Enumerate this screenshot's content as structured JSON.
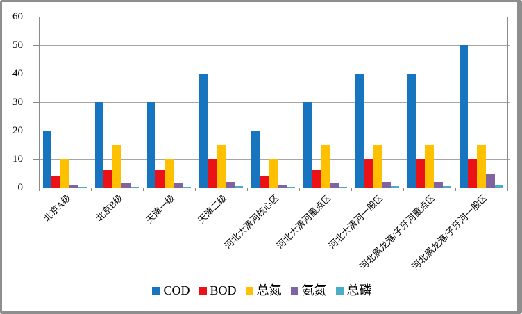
{
  "chart_data": {
    "type": "bar",
    "title": "",
    "categories": [
      "北京A级",
      "北京B级",
      "天津一级",
      "天津二级",
      "河北大清河核心区",
      "河北大清河重点区",
      "河北大清河一般区",
      "河北黑龙港/子牙河重点区",
      "河北黑龙港/子牙河一般区"
    ],
    "series": [
      {
        "name": "COD",
        "color": "#1775C0",
        "values": [
          20,
          30,
          30,
          40,
          20,
          30,
          40,
          40,
          50
        ]
      },
      {
        "name": "BOD",
        "color": "#EA1216",
        "values": [
          4,
          6,
          6,
          10,
          4,
          6,
          10,
          10,
          10
        ]
      },
      {
        "name": "总氮",
        "color": "#FFC000",
        "values": [
          10,
          15,
          10,
          15,
          10,
          15,
          15,
          15,
          15
        ]
      },
      {
        "name": "氨氮",
        "color": "#8064A2",
        "values": [
          1,
          1.5,
          1.5,
          2,
          1,
          1.5,
          2,
          2,
          5
        ]
      },
      {
        "name": "总磷",
        "color": "#4BACC6",
        "values": [
          0.2,
          0.3,
          0.3,
          0.5,
          0.3,
          0.3,
          0.5,
          0.5,
          1
        ]
      }
    ],
    "y_axis": {
      "min": 0,
      "max": 60,
      "tick_step": 10,
      "ticks": [
        0,
        10,
        20,
        30,
        40,
        50,
        60
      ]
    },
    "xlabel": "",
    "ylabel": "",
    "grid": true,
    "legend_position": "bottom"
  },
  "styles": {
    "grid_color": "#A6A6A6",
    "axis_color": "#8A8A8A",
    "frame_color": "#8E8E8E",
    "text_color": "#000000",
    "background": "#FFFFFF"
  }
}
